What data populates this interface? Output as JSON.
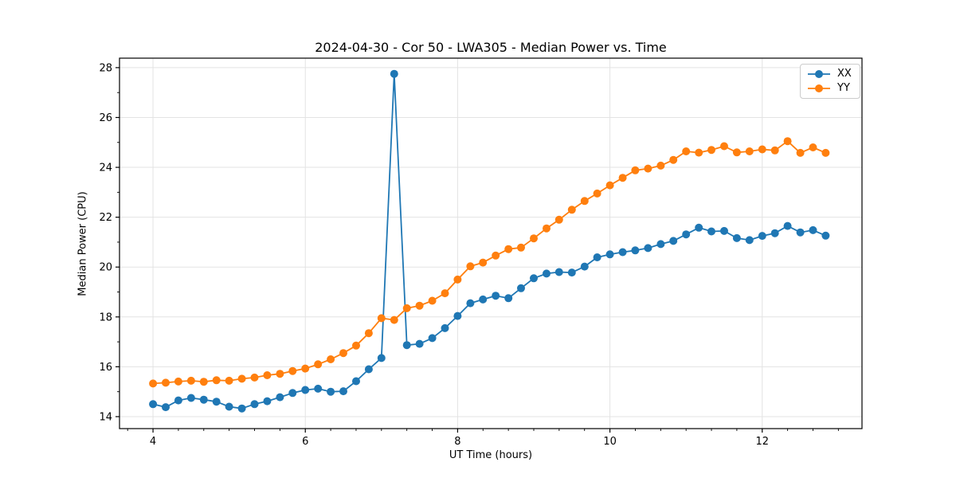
{
  "chart_data": {
    "type": "line",
    "title": "2024-04-30 - Cor 50 - LWA305 - Median Power vs. Time",
    "xlabel": "UT Time (hours)",
    "ylabel": "Median Power (CPU)",
    "xlim": [
      3.56,
      13.31
    ],
    "ylim": [
      13.52,
      28.38
    ],
    "xticks": [
      4,
      6,
      8,
      10,
      12
    ],
    "yticks": [
      14,
      16,
      18,
      20,
      22,
      24,
      26,
      28
    ],
    "x_minor_step": 0.33333,
    "y_minor_step": 1,
    "grid": true,
    "legend_position": "upper right",
    "marker": "o",
    "x": [
      4.0,
      4.167,
      4.333,
      4.5,
      4.667,
      4.833,
      5.0,
      5.167,
      5.333,
      5.5,
      5.667,
      5.833,
      6.0,
      6.167,
      6.333,
      6.5,
      6.667,
      6.833,
      7.0,
      7.167,
      7.333,
      7.5,
      7.667,
      7.833,
      8.0,
      8.167,
      8.333,
      8.5,
      8.667,
      8.833,
      9.0,
      9.167,
      9.333,
      9.5,
      9.667,
      9.833,
      10.0,
      10.167,
      10.333,
      10.5,
      10.667,
      10.833,
      11.0,
      11.167,
      11.333,
      11.5,
      11.667,
      11.833,
      12.0,
      12.167,
      12.333,
      12.5,
      12.667,
      12.833
    ],
    "series": [
      {
        "name": "XX",
        "color": "#1f77b4",
        "values": [
          14.5,
          14.38,
          14.65,
          14.75,
          14.68,
          14.6,
          14.4,
          14.33,
          14.5,
          14.62,
          14.78,
          14.95,
          15.07,
          15.12,
          15.0,
          15.02,
          15.42,
          15.9,
          16.35,
          27.75,
          16.87,
          16.92,
          17.15,
          17.55,
          18.04,
          18.55,
          18.7,
          18.85,
          18.75,
          19.15,
          19.55,
          19.74,
          19.8,
          19.78,
          20.02,
          20.39,
          20.51,
          20.6,
          20.67,
          20.76,
          20.92,
          21.05,
          21.31,
          21.58,
          21.43,
          21.45,
          21.16,
          21.08,
          21.25,
          21.36,
          21.65,
          21.39,
          21.48,
          21.26
        ]
      },
      {
        "name": "YY",
        "color": "#ff7f0e",
        "values": [
          15.33,
          15.36,
          15.41,
          15.44,
          15.4,
          15.46,
          15.44,
          15.52,
          15.57,
          15.66,
          15.72,
          15.83,
          15.93,
          16.1,
          16.3,
          16.55,
          16.85,
          17.35,
          17.95,
          17.88,
          18.35,
          18.45,
          18.65,
          18.95,
          19.5,
          20.03,
          20.18,
          20.46,
          20.72,
          20.78,
          21.15,
          21.55,
          21.9,
          22.3,
          22.65,
          22.95,
          23.28,
          23.58,
          23.88,
          23.95,
          24.07,
          24.3,
          24.64,
          24.59,
          24.7,
          24.85,
          24.6,
          24.64,
          24.72,
          24.68,
          25.05,
          24.58,
          24.8,
          24.58
        ]
      }
    ]
  },
  "style": {
    "grid_color": "#e3e3e3",
    "spine_color": "#000000",
    "tick_color": "#000000",
    "text_color": "#000000",
    "marker_radius": 5,
    "line_width": 1.8
  }
}
